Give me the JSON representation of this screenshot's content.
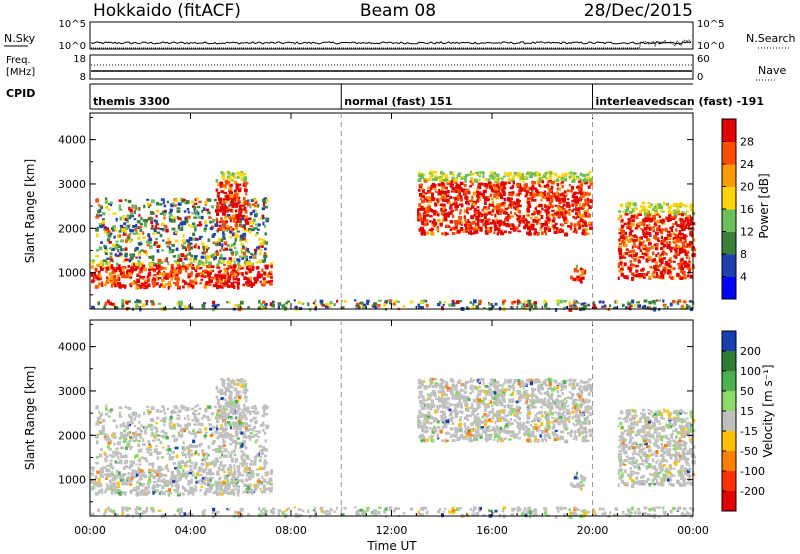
{
  "header": {
    "station": "Hokkaido (fitACF)",
    "beam": "Beam 08",
    "date": "28/Dec/2015"
  },
  "panels": {
    "nsky_label": "N.Sky",
    "nsky_ticks": [
      "10^5",
      "10^0"
    ],
    "nsearch_label": "N.Search",
    "nsearch_ticks": [
      "10^5",
      "10^0"
    ],
    "freq_label_1": "Freq.",
    "freq_label_2": "[MHz]",
    "freq_ticks": [
      "18",
      "8"
    ],
    "nave_label": "Nave",
    "nave_ticks": [
      "60",
      "0"
    ],
    "cpid_label": "CPID",
    "cpid_segments": [
      {
        "label": "themis 3300",
        "start_hour": 0.0
      },
      {
        "label": "normal (fast) 151",
        "start_hour": 10.0
      },
      {
        "label": "interleavedscan (fast) -191",
        "start_hour": 20.0
      }
    ]
  },
  "chart_data": [
    {
      "type": "heatmap",
      "name": "power",
      "xlabel": "",
      "ylabel": "Slant Range [km]",
      "xlim_hours": [
        0,
        24
      ],
      "ylim": [
        180,
        4600
      ],
      "yticks": [
        "1000",
        "2000",
        "3000",
        "4000"
      ],
      "colorbar_label": "Power [dB]",
      "colorbar_ticks": [
        "4",
        "8",
        "12",
        "16",
        "20",
        "24",
        "28"
      ],
      "colorbar_colors": [
        "#0000ff",
        "#2040b0",
        "#3b7f3b",
        "#6abf5a",
        "#ffd400",
        "#ff9a00",
        "#ff4d00",
        "#e00000"
      ],
      "echo_regions": [
        {
          "t_start": 0.0,
          "t_end": 7.2,
          "r_low": 700,
          "r_high": 1300,
          "level": "high"
        },
        {
          "t_start": 0.2,
          "t_end": 7.0,
          "r_low": 1300,
          "r_high": 2700,
          "level": "mixed"
        },
        {
          "t_start": 5.0,
          "t_end": 6.2,
          "r_low": 2000,
          "r_high": 3300,
          "level": "high"
        },
        {
          "t_start": 13.0,
          "t_end": 19.9,
          "r_low": 1900,
          "r_high": 3300,
          "level": "high"
        },
        {
          "t_start": 19.1,
          "t_end": 19.6,
          "r_low": 800,
          "r_high": 1200,
          "level": "high"
        },
        {
          "t_start": 21.0,
          "t_end": 24.0,
          "r_low": 900,
          "r_high": 2600,
          "level": "high"
        },
        {
          "t_start": 0.0,
          "t_end": 24.0,
          "r_low": 200,
          "r_high": 400,
          "level": "mixed"
        }
      ]
    },
    {
      "type": "heatmap",
      "name": "velocity",
      "xlabel": "Time UT",
      "ylabel": "Slant Range [km]",
      "xlim_hours": [
        0,
        24
      ],
      "ylim": [
        180,
        4600
      ],
      "xticks": [
        "00:00",
        "04:00",
        "08:00",
        "12:00",
        "16:00",
        "20:00",
        "00:00"
      ],
      "yticks": [
        "1000",
        "2000",
        "3000",
        "4000"
      ],
      "colorbar_label": "Velocity [m s⁻¹]",
      "colorbar_ticks": [
        "200",
        "100",
        "50",
        "15",
        "-15",
        "-50",
        "-100",
        "-200"
      ],
      "colorbar_colors": [
        "#1a3fb0",
        "#2e7d32",
        "#4caf50",
        "#8bd96a",
        "#c0c0c0",
        "#ffc000",
        "#ff8000",
        "#ff3000",
        "#e00000"
      ]
    }
  ]
}
